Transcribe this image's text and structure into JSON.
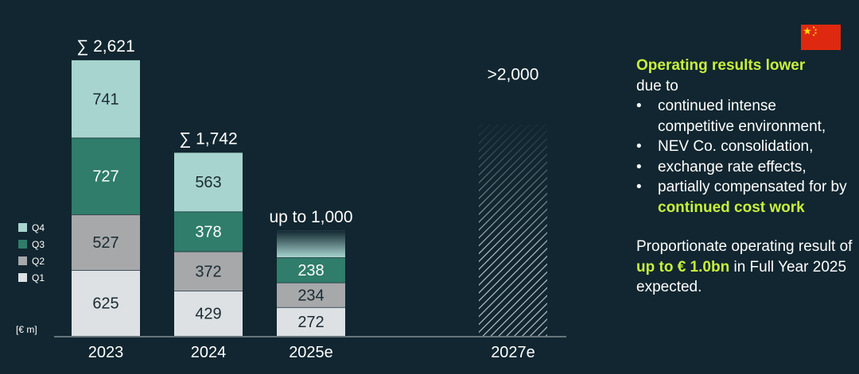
{
  "chart_data": {
    "type": "bar",
    "stacked": true,
    "unit_label": "[€ m]",
    "categories": [
      "2023",
      "2024",
      "2025e",
      "2027e"
    ],
    "series": [
      {
        "name": "Q1",
        "color": "#dde1e4",
        "values": [
          625,
          429,
          272,
          null
        ]
      },
      {
        "name": "Q2",
        "color": "#a6a8aa",
        "values": [
          527,
          372,
          234,
          null
        ]
      },
      {
        "name": "Q3",
        "color": "#2f7d6a",
        "values": [
          727,
          378,
          238,
          null
        ]
      },
      {
        "name": "Q4",
        "color": "#a7d4ce",
        "values": [
          741,
          563,
          null,
          null
        ]
      }
    ],
    "totals": [
      "∑ 2,621",
      "∑ 1,742",
      "up to 1,000",
      ">2,000"
    ],
    "target_values": [
      null,
      null,
      1000,
      2000
    ],
    "target_style": [
      "solid",
      "solid",
      "faded",
      "hatched"
    ],
    "legend": {
      "position": "left",
      "order": [
        "Q4",
        "Q3",
        "Q2",
        "Q1"
      ]
    },
    "ylim": [
      0,
      2621
    ],
    "grid": false
  },
  "commentary": {
    "heading": "Operating results lower",
    "intro": "due to",
    "bullets": [
      {
        "text": "continued intense competitive environment,"
      },
      {
        "text": "NEV Co. consolidation,"
      },
      {
        "text": "exchange rate effects,"
      },
      {
        "text": "partially compensated for by ",
        "highlight": "continued cost work"
      }
    ],
    "para2_start": "Proportionate operating result of ",
    "para2_highlight": "up to € 1.0bn",
    "para2_end": " in Full Year 2025 expected."
  },
  "region_flag": {
    "icon": "china-flag-icon",
    "colors": [
      "#de2910",
      "#ffde00"
    ]
  },
  "colors": {
    "background": "#112630",
    "highlight": "#c8f03c",
    "axis": "#9aa5aa"
  }
}
